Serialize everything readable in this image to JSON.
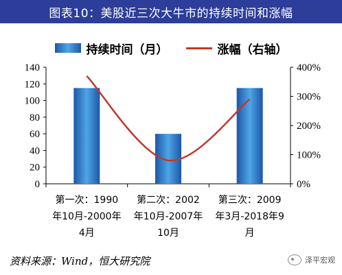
{
  "header": {
    "title": "图表10：美股近三次大牛市的持续时间和涨幅"
  },
  "footer": {
    "source": "资料来源：Wind，恒大研究院",
    "watermark": "泽平宏观"
  },
  "chart_data": {
    "type": "bar",
    "categories": [
      [
        "第一次：1990",
        "年10月-2000年",
        "4月"
      ],
      [
        "第二次：2002",
        "年10月-2007年",
        "10月"
      ],
      [
        "第三次：2009",
        "年3月-2018年9",
        "月"
      ]
    ],
    "series": [
      {
        "name": "持续时间（月）",
        "type": "bar",
        "axis": "left",
        "values": [
          115,
          60,
          115
        ],
        "color": "#2e7fd0"
      },
      {
        "name": "涨幅（右轴）",
        "type": "line",
        "axis": "right",
        "values": [
          3.7,
          0.8,
          2.9
        ],
        "color": "#c0392b"
      }
    ],
    "y_left": {
      "range": [
        0,
        140
      ],
      "ticks": [
        0,
        20,
        40,
        60,
        80,
        100,
        120,
        140
      ]
    },
    "y_right": {
      "range": [
        0,
        4
      ],
      "ticks": [
        "0%",
        "100%",
        "200%",
        "300%",
        "400%"
      ]
    },
    "legend_position": "top",
    "grid": false
  }
}
